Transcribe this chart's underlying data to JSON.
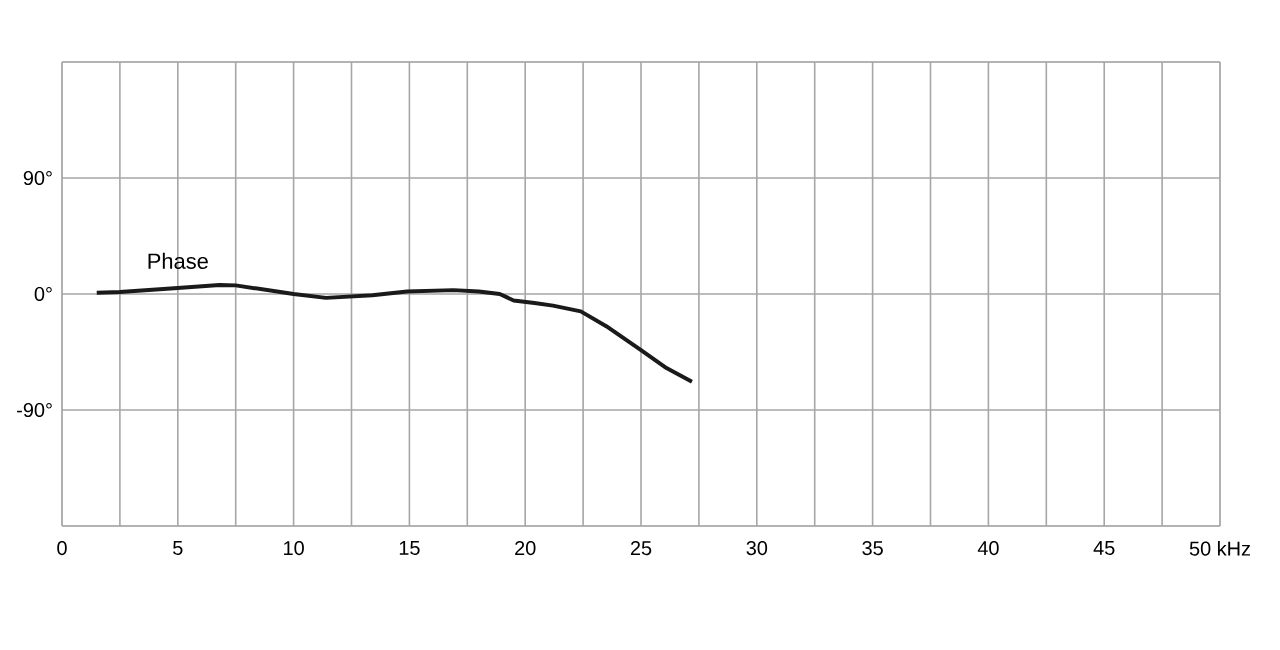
{
  "chart_data": {
    "type": "line",
    "x": [
      1.5,
      2.5,
      5,
      6.8,
      7.5,
      10,
      11.4,
      13.4,
      14.9,
      16.9,
      18,
      18.9,
      19.5,
      20.4,
      21.2,
      22.4,
      23.5,
      25,
      26.1,
      27.2
    ],
    "series": [
      {
        "name": "Phase",
        "color": "#1a1a1a",
        "values": [
          1,
          1.5,
          4.7,
          7,
          6.7,
          0,
          -3,
          -1,
          2,
          3,
          2,
          0,
          -5,
          -7,
          -9,
          -13.5,
          -25,
          -43.5,
          -57.5,
          -68
        ]
      }
    ],
    "xlim": [
      0,
      50
    ],
    "ylim": [
      -180,
      180
    ],
    "xticks": [
      0,
      {
        "value": 2.5,
        "label": null
      },
      5,
      {
        "value": 7.5,
        "label": null
      },
      10,
      {
        "value": 12.5,
        "label": null
      },
      15,
      {
        "value": 17.5,
        "label": null
      },
      20,
      {
        "value": 22.5,
        "label": null
      },
      25,
      {
        "value": 27.5,
        "label": null
      },
      30,
      {
        "value": 32.5,
        "label": null
      },
      35,
      {
        "value": 37.5,
        "label": null
      },
      40,
      {
        "value": 42.5,
        "label": null
      },
      45,
      {
        "value": 47.5,
        "label": null
      },
      {
        "value": 50,
        "label": "50 kHz"
      }
    ],
    "yticks": [
      {
        "value": -180,
        "label": null
      },
      {
        "value": -90,
        "label": "-90°"
      },
      {
        "value": 0,
        "label": "0°"
      },
      {
        "value": 90,
        "label": "90°"
      },
      {
        "value": 180,
        "label": null
      }
    ],
    "grid": true,
    "legend": false,
    "marker": "none",
    "line_style": "solid"
  }
}
